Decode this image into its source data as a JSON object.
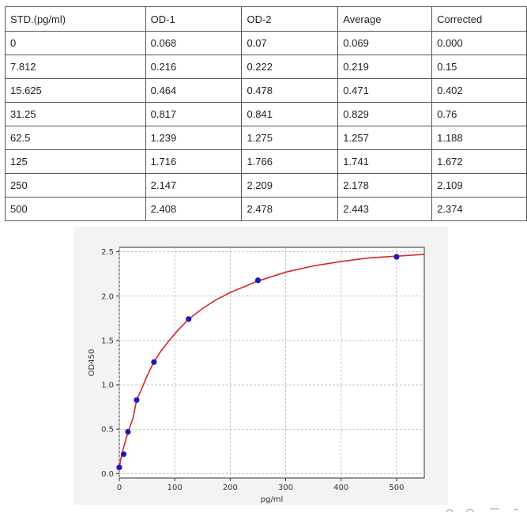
{
  "table": {
    "headers": [
      "STD.(pg/ml)",
      "OD-1",
      "OD-2",
      "Average",
      "Corrected"
    ],
    "rows": [
      [
        "0",
        "0.068",
        "0.07",
        "0.069",
        "0.000"
      ],
      [
        "7.812",
        "0.216",
        "0.222",
        "0.219",
        "0.15"
      ],
      [
        "15.625",
        "0.464",
        "0.478",
        "0.471",
        "0.402"
      ],
      [
        "31.25",
        "0.817",
        "0.841",
        "0.829",
        "0.76"
      ],
      [
        "62.5",
        "1.239",
        "1.275",
        "1.257",
        "1.188"
      ],
      [
        "125",
        "1.716",
        "1.766",
        "1.741",
        "1.672"
      ],
      [
        "250",
        "2.147",
        "2.209",
        "2.178",
        "2.109"
      ],
      [
        "500",
        "2.408",
        "2.478",
        "2.443",
        "2.374"
      ]
    ]
  },
  "chart_data": {
    "type": "scatter",
    "title": "",
    "xlabel": "pg/ml",
    "ylabel": "OD450",
    "xlim": [
      0,
      550
    ],
    "ylim": [
      -0.05,
      2.55
    ],
    "xticks": [
      0,
      100,
      200,
      300,
      400,
      500
    ],
    "yticks": [
      0.0,
      0.5,
      1.0,
      1.5,
      2.0,
      2.5
    ],
    "grid": true,
    "colors": {
      "points": "#1f14c8",
      "curve": "#d62728",
      "grid": "#b8b8b8"
    },
    "series": [
      {
        "values_x": [
          0,
          7.812,
          15.625,
          31.25,
          62.5,
          125,
          250,
          500
        ],
        "values_y": [
          0.069,
          0.219,
          0.471,
          0.829,
          1.257,
          1.741,
          2.178,
          2.443
        ]
      }
    ],
    "fit_curve": {
      "x": [
        0,
        2,
        5,
        8,
        12,
        16,
        20,
        25,
        31.25,
        40,
        50,
        62.5,
        75,
        90,
        105,
        125,
        150,
        175,
        200,
        250,
        300,
        350,
        400,
        450,
        500,
        550
      ],
      "y": [
        0.07,
        0.14,
        0.23,
        0.3,
        0.39,
        0.47,
        0.54,
        0.63,
        0.83,
        0.95,
        1.1,
        1.26,
        1.38,
        1.5,
        1.61,
        1.74,
        1.86,
        1.96,
        2.04,
        2.17,
        2.27,
        2.34,
        2.39,
        2.43,
        2.45,
        2.47
      ]
    }
  }
}
